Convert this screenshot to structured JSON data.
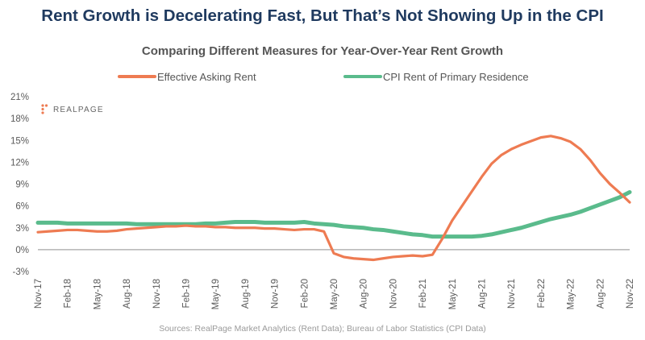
{
  "title": "Rent Growth is Decelerating Fast, But That’s Not Showing Up in the CPI",
  "source": "Sources: RealPage Market Analytics (Rent Data); Bureau of Labor Statistics (CPI Data)",
  "logo": {
    "text": "REALPAGE"
  },
  "chart_data": {
    "type": "line",
    "title": "Comparing Different Measures for Year-Over-Year Rent Growth",
    "xlabel": "",
    "ylabel": "",
    "ylim": [
      -3,
      21
    ],
    "yticks": [
      -3,
      0,
      3,
      6,
      9,
      12,
      15,
      18,
      21
    ],
    "ytick_labels": [
      "-3%",
      "0%",
      "3%",
      "6%",
      "9%",
      "12%",
      "15%",
      "18%",
      "21%"
    ],
    "xtick_labels": [
      "Nov-17",
      "Feb-18",
      "May-18",
      "Aug-18",
      "Nov-18",
      "Feb-19",
      "May-19",
      "Aug-19",
      "Nov-19",
      "Feb-20",
      "May-20",
      "Aug-20",
      "Nov-20",
      "Feb-21",
      "May-21",
      "Aug-21",
      "Nov-21",
      "Feb-22",
      "May-22",
      "Aug-22",
      "Nov-22"
    ],
    "x": [
      "Nov-17",
      "Dec-17",
      "Jan-18",
      "Feb-18",
      "Mar-18",
      "Apr-18",
      "May-18",
      "Jun-18",
      "Jul-18",
      "Aug-18",
      "Sep-18",
      "Oct-18",
      "Nov-18",
      "Dec-18",
      "Jan-19",
      "Feb-19",
      "Mar-19",
      "Apr-19",
      "May-19",
      "Jun-19",
      "Jul-19",
      "Aug-19",
      "Sep-19",
      "Oct-19",
      "Nov-19",
      "Dec-19",
      "Jan-20",
      "Feb-20",
      "Mar-20",
      "Apr-20",
      "May-20",
      "Jun-20",
      "Jul-20",
      "Aug-20",
      "Sep-20",
      "Oct-20",
      "Nov-20",
      "Dec-20",
      "Jan-21",
      "Feb-21",
      "Mar-21",
      "Apr-21",
      "May-21",
      "Jun-21",
      "Jul-21",
      "Aug-21",
      "Sep-21",
      "Oct-21",
      "Nov-21",
      "Dec-21",
      "Jan-22",
      "Feb-22",
      "Mar-22",
      "Apr-22",
      "May-22",
      "Jun-22",
      "Jul-22",
      "Aug-22",
      "Sep-22",
      "Oct-22",
      "Nov-22"
    ],
    "legend_position": "top",
    "grid": false,
    "series": [
      {
        "name": "Effective Asking Rent",
        "color": "#ee7b52",
        "values": [
          2.4,
          2.5,
          2.6,
          2.7,
          2.7,
          2.6,
          2.5,
          2.5,
          2.6,
          2.8,
          2.9,
          3.0,
          3.1,
          3.2,
          3.2,
          3.3,
          3.2,
          3.2,
          3.1,
          3.1,
          3.0,
          3.0,
          3.0,
          2.9,
          2.9,
          2.8,
          2.7,
          2.8,
          2.8,
          2.5,
          -0.5,
          -1.0,
          -1.2,
          -1.3,
          -1.4,
          -1.2,
          -1.0,
          -0.9,
          -0.8,
          -0.9,
          -0.7,
          1.5,
          4.0,
          6.0,
          8.0,
          10.0,
          11.8,
          13.0,
          13.8,
          14.4,
          14.9,
          15.4,
          15.6,
          15.3,
          14.8,
          13.8,
          12.3,
          10.5,
          9.0,
          7.8,
          6.5
        ]
      },
      {
        "name": "CPI Rent of Primary Residence",
        "color": "#5abb8c",
        "values": [
          3.7,
          3.7,
          3.7,
          3.6,
          3.6,
          3.6,
          3.6,
          3.6,
          3.6,
          3.6,
          3.5,
          3.5,
          3.5,
          3.5,
          3.5,
          3.5,
          3.5,
          3.6,
          3.6,
          3.7,
          3.8,
          3.8,
          3.8,
          3.7,
          3.7,
          3.7,
          3.7,
          3.8,
          3.6,
          3.5,
          3.4,
          3.2,
          3.1,
          3.0,
          2.8,
          2.7,
          2.5,
          2.3,
          2.1,
          2.0,
          1.8,
          1.8,
          1.8,
          1.8,
          1.8,
          1.9,
          2.1,
          2.4,
          2.7,
          3.0,
          3.4,
          3.8,
          4.2,
          4.5,
          4.8,
          5.2,
          5.7,
          6.2,
          6.7,
          7.2,
          7.9
        ]
      }
    ]
  }
}
